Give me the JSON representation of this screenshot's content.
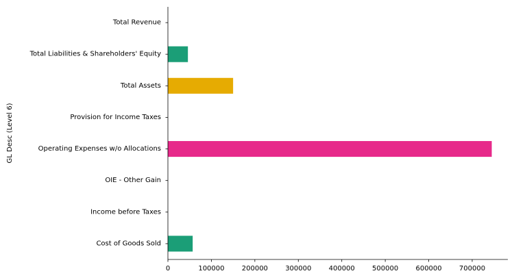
{
  "chart_data": {
    "type": "bar",
    "orientation": "horizontal",
    "ylabel": "GL Desc (Level 6)",
    "xlabel": "",
    "categories": [
      "Total Revenue",
      "Total Liabilities & Shareholders' Equity",
      "Total Assets",
      "Provision for Income Taxes",
      "Operating Expenses w/o Allocations",
      "OIE - Other Gain",
      "Income before Taxes",
      "Cost of Goods Sold"
    ],
    "values": [
      0,
      46000,
      150000,
      0,
      745000,
      0,
      0,
      57000
    ],
    "bar_colors": [
      "#1b9e77",
      "#1b9e77",
      "#e6ab02",
      "#7570b3",
      "#e7298a",
      "#66a61e",
      "#a6761d",
      "#1b9e77"
    ],
    "xlim": [
      0,
      782000
    ],
    "xticks": [
      0,
      100000,
      200000,
      300000,
      400000,
      500000,
      600000,
      700000
    ],
    "xtick_labels": [
      "0",
      "100000",
      "200000",
      "300000",
      "400000",
      "500000",
      "600000",
      "700000"
    ],
    "grid": false,
    "legend": "none"
  }
}
